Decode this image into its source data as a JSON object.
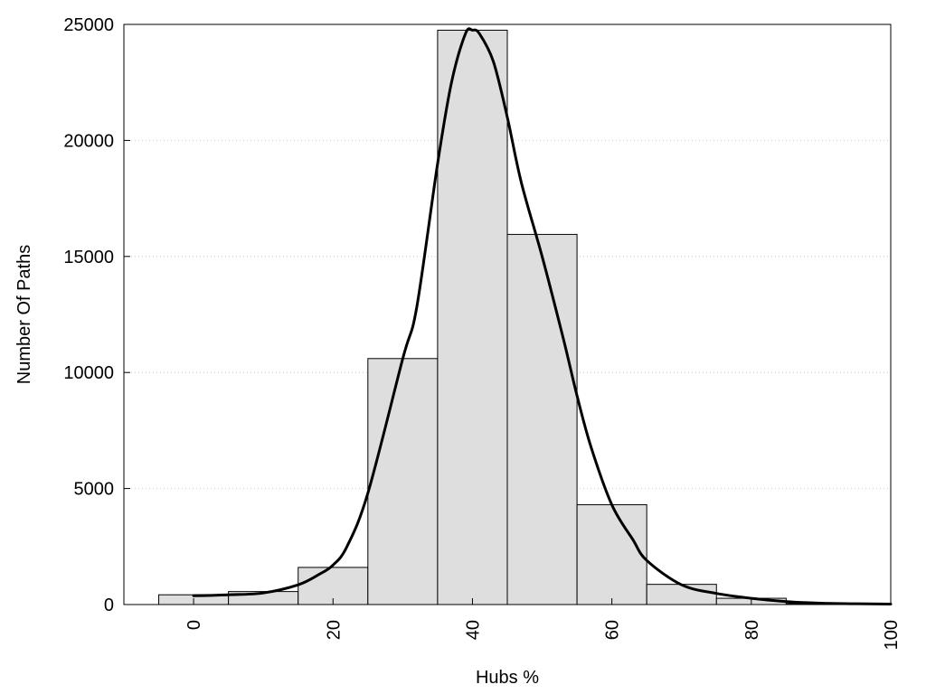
{
  "chart_data": {
    "type": "bar",
    "xlabel": "Hubs %",
    "ylabel": "Number Of Paths",
    "xlim": [
      -10,
      100
    ],
    "ylim": [
      0,
      25000
    ],
    "x_ticks": [
      0,
      20,
      40,
      60,
      80,
      100
    ],
    "y_ticks": [
      0,
      5000,
      10000,
      15000,
      20000,
      25000
    ],
    "grid": "horizontal dotted",
    "legend": "none",
    "bin_width": 10,
    "bins": [
      {
        "center": 0,
        "value": 420
      },
      {
        "center": 10,
        "value": 560
      },
      {
        "center": 20,
        "value": 1600
      },
      {
        "center": 30,
        "value": 10600
      },
      {
        "center": 40,
        "value": 24750
      },
      {
        "center": 50,
        "value": 15950
      },
      {
        "center": 60,
        "value": 4300
      },
      {
        "center": 70,
        "value": 870
      },
      {
        "center": 80,
        "value": 270
      },
      {
        "center": 90,
        "value": 40
      }
    ],
    "density_curve": {
      "x": [
        0,
        5,
        10,
        15,
        18,
        20,
        22,
        25,
        30,
        32,
        35,
        37,
        39,
        40,
        41,
        43,
        45,
        47,
        50,
        53,
        55,
        57,
        60,
        63,
        65,
        70,
        75,
        80,
        85,
        90,
        95,
        100
      ],
      "y": [
        380,
        420,
        500,
        850,
        1300,
        1700,
        2500,
        4800,
        10600,
        12800,
        19000,
        22500,
        24600,
        24750,
        24600,
        23400,
        21000,
        18200,
        15000,
        11500,
        9000,
        6800,
        4300,
        2800,
        1900,
        850,
        480,
        270,
        130,
        60,
        35,
        20
      ]
    },
    "colors": {
      "bar_fill": "#dedede",
      "bar_stroke": "#000000",
      "curve": "#000000",
      "grid": "#c8c8c8"
    }
  }
}
